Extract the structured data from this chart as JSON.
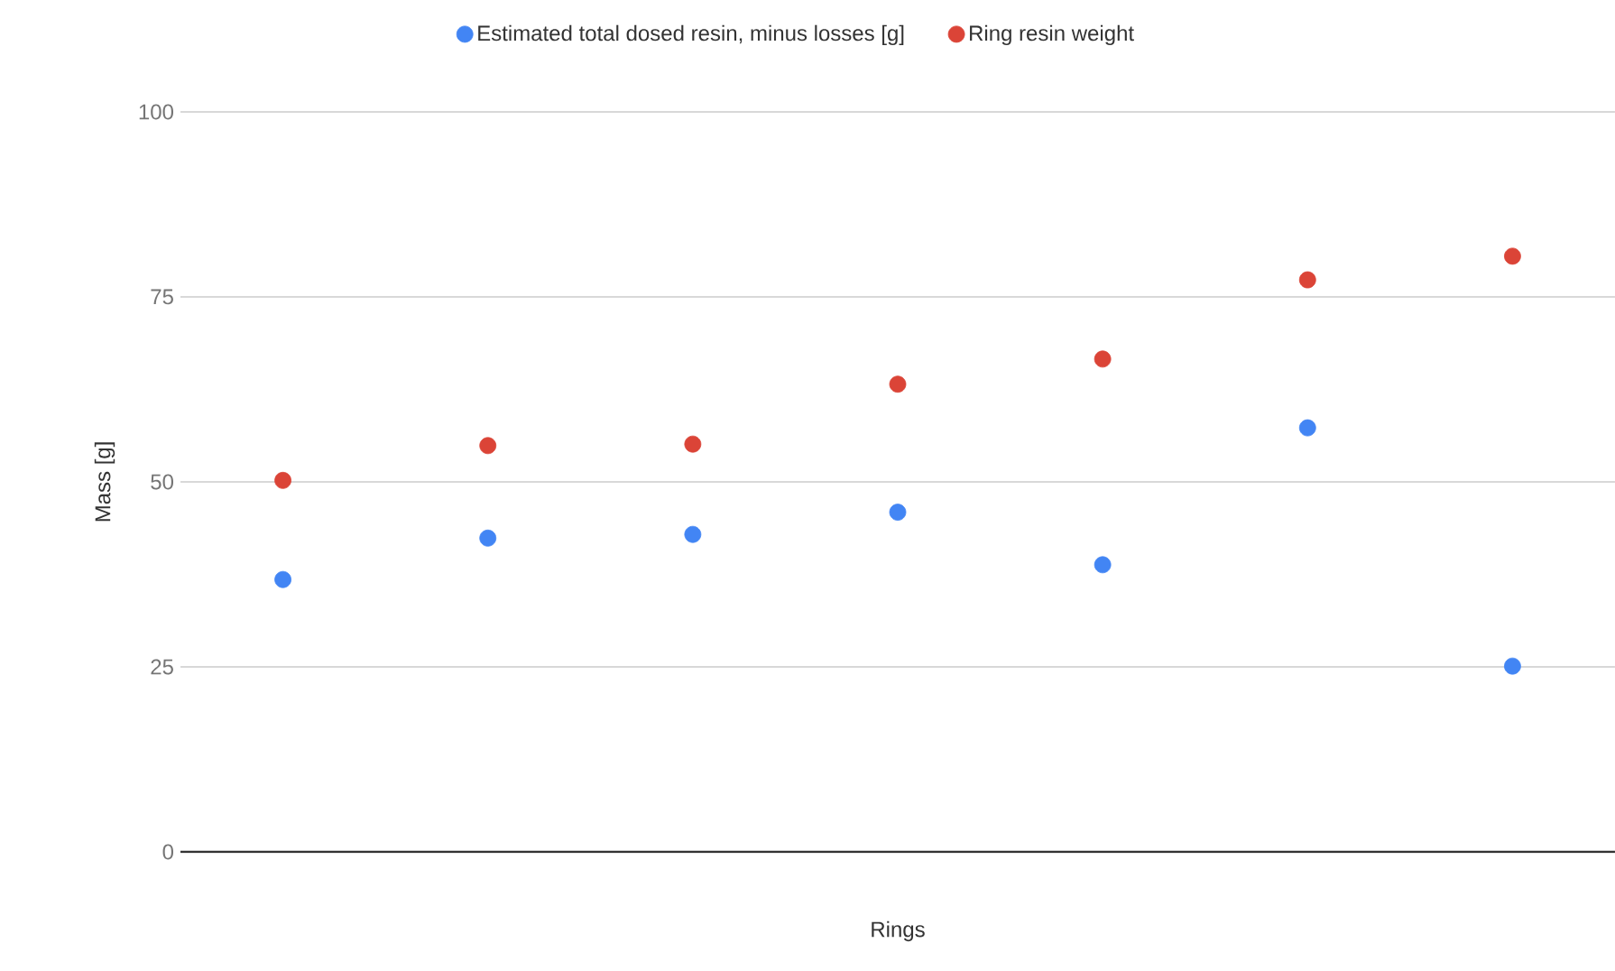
{
  "chart_data": {
    "type": "scatter",
    "xlabel": "Rings",
    "ylabel": "Mass [g]",
    "categories": [
      null,
      null,
      null,
      null,
      null,
      null,
      null
    ],
    "series": [
      {
        "name": "Estimated total dosed resin, minus losses [g]",
        "color": "#4285f4",
        "values": [
          36.8,
          42.4,
          42.9,
          45.9,
          38.8,
          57.3,
          25.1
        ]
      },
      {
        "name": "Ring resin weight",
        "color": "#db4437",
        "values": [
          50.2,
          54.9,
          55.1,
          63.2,
          66.6,
          77.3,
          80.5
        ]
      }
    ],
    "ylim": [
      0,
      100
    ],
    "yticks": [
      0,
      25,
      50,
      75,
      100
    ],
    "grid": "y",
    "legend": "top",
    "marker": "circle"
  }
}
